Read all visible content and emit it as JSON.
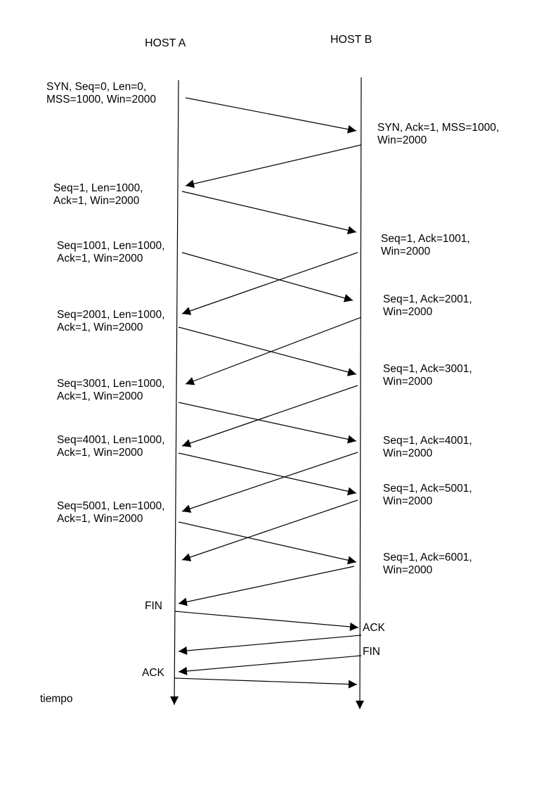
{
  "headers": {
    "host_a": "HOST A",
    "host_b": "HOST B"
  },
  "axis_label": "tiempo",
  "labels": {
    "a_syn": [
      "SYN, Seq=0, Len=0,",
      "MSS=1000, Win=2000"
    ],
    "b_syn_ack": [
      "SYN, Ack=1, MSS=1000,",
      "Win=2000"
    ],
    "a_seg1": [
      "Seq=1, Len=1000,",
      "Ack=1, Win=2000"
    ],
    "b_ack1001": [
      "Seq=1, Ack=1001,",
      "Win=2000"
    ],
    "a_seg1001": [
      "Seq=1001, Len=1000,",
      "Ack=1, Win=2000"
    ],
    "b_ack2001": [
      "Seq=1, Ack=2001,",
      "Win=2000"
    ],
    "a_seg2001": [
      "Seq=2001, Len=1000,",
      "Ack=1, Win=2000"
    ],
    "b_ack3001": [
      "Seq=1, Ack=3001,",
      "Win=2000"
    ],
    "a_seg3001": [
      "Seq=3001, Len=1000,",
      "Ack=1, Win=2000"
    ],
    "b_ack4001": [
      "Seq=1, Ack=4001,",
      "Win=2000"
    ],
    "a_seg4001": [
      "Seq=4001, Len=1000,",
      "Ack=1, Win=2000"
    ],
    "b_ack5001": [
      "Seq=1, Ack=5001,",
      "Win=2000"
    ],
    "a_seg5001": [
      "Seq=5001, Len=1000,",
      "Ack=1, Win=2000"
    ],
    "b_ack6001": [
      "Seq=1, Ack=6001,",
      "Win=2000"
    ],
    "a_fin": "FIN",
    "b_ack": "ACK",
    "b_fin": "FIN",
    "a_ack": "ACK"
  }
}
